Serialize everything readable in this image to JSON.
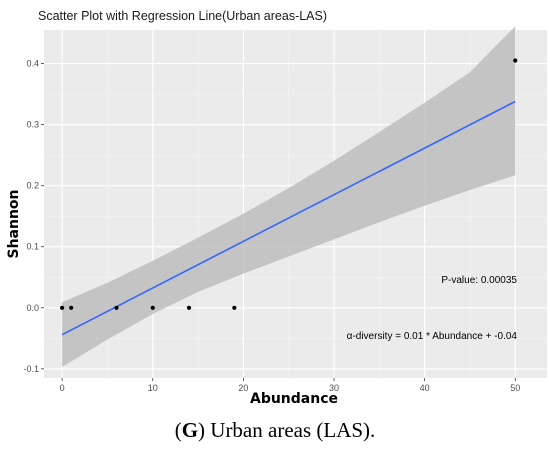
{
  "chart_data": {
    "type": "scatter",
    "title": "Scatter Plot with Regression Line(Urban areas-LAS)",
    "xlabel": "Abundance",
    "ylabel": "Shannon",
    "xlim": [
      -2,
      53.5
    ],
    "ylim": [
      -0.115,
      0.455
    ],
    "xticks": [
      0,
      10,
      20,
      30,
      40,
      50
    ],
    "yticks": [
      -0.1,
      0.0,
      0.1,
      0.2,
      0.3,
      0.4
    ],
    "ytick_labels": [
      "-0.1",
      "0.0",
      "0.1",
      "0.2",
      "0.3",
      "0.4"
    ],
    "grid": true,
    "points": [
      {
        "x": 0,
        "y": 0.0
      },
      {
        "x": 1,
        "y": 0.0
      },
      {
        "x": 6,
        "y": 0.0
      },
      {
        "x": 10,
        "y": 0.0
      },
      {
        "x": 14,
        "y": 0.0
      },
      {
        "x": 19,
        "y": 0.0
      },
      {
        "x": 50,
        "y": 0.405
      }
    ],
    "regression": {
      "x": [
        0,
        50
      ],
      "y": [
        -0.044,
        0.338
      ],
      "band_x": [
        0,
        5,
        10,
        15,
        20,
        25,
        30,
        35,
        40,
        45,
        50
      ],
      "band_lower": [
        -0.097,
        -0.052,
        -0.01,
        0.026,
        0.056,
        0.084,
        0.112,
        0.14,
        0.167,
        0.193,
        0.217
      ],
      "band_upper": [
        0.009,
        0.041,
        0.077,
        0.115,
        0.154,
        0.196,
        0.241,
        0.288,
        0.336,
        0.386,
        0.461
      ],
      "color": "#3366ff",
      "band_color": "#bdbdbd"
    },
    "annotations": {
      "p_value": "P-value: 0.00035",
      "equation": "α-diversity = 0.01 * Abundance + -0.04"
    },
    "panel_bg": "#ebebeb"
  },
  "caption": {
    "letter": "G",
    "open": "(",
    "rest": ") Urban areas (LAS)."
  }
}
